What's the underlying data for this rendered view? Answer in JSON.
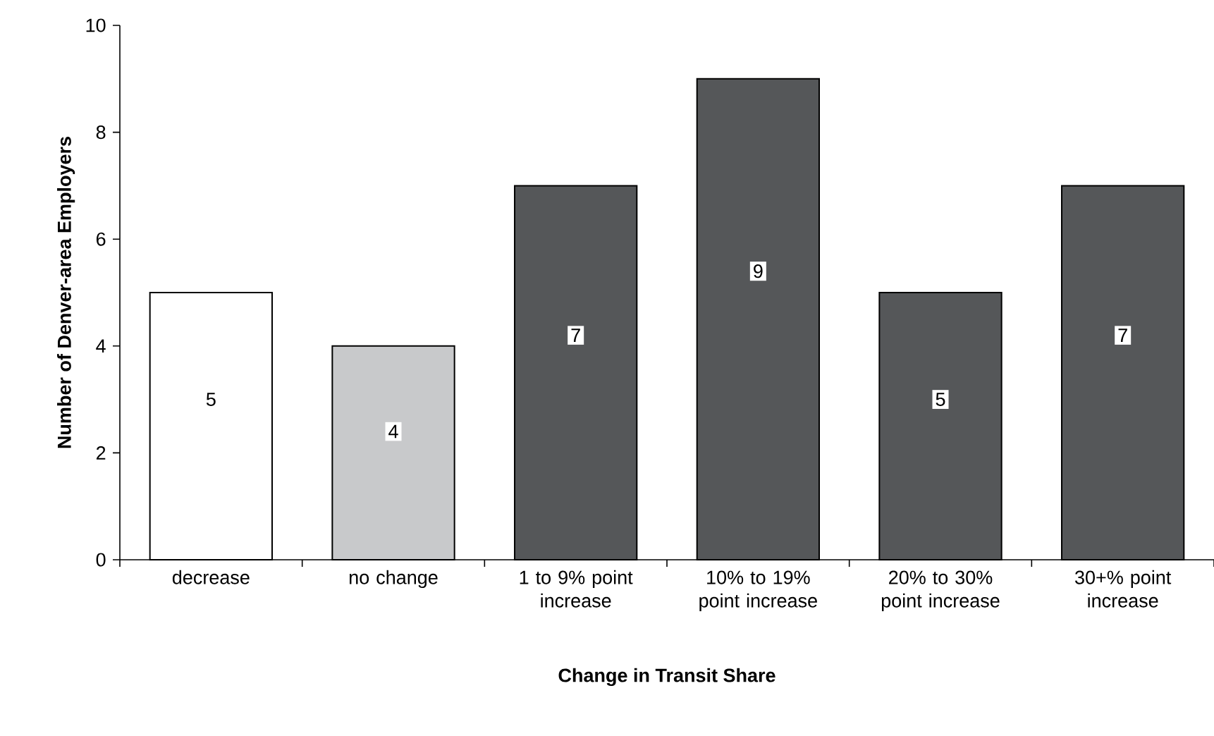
{
  "chart_data": {
    "type": "bar",
    "xlabel": "Change in Transit Share",
    "ylabel": "Number of Denver-area Employers",
    "categories": [
      "decrease",
      "no change",
      "1 to 9% point increase",
      "10% to 19% point increase",
      "20% to 30% point increase",
      "30+% point increase"
    ],
    "values": [
      5,
      4,
      7,
      9,
      5,
      7
    ],
    "colors": [
      "#ffffff",
      "#c8c9cb",
      "#555759",
      "#555759",
      "#555759",
      "#555759"
    ],
    "ylim": [
      0,
      10
    ],
    "yticks": [
      0,
      2,
      4,
      6,
      8,
      10
    ],
    "data_labels": true
  }
}
